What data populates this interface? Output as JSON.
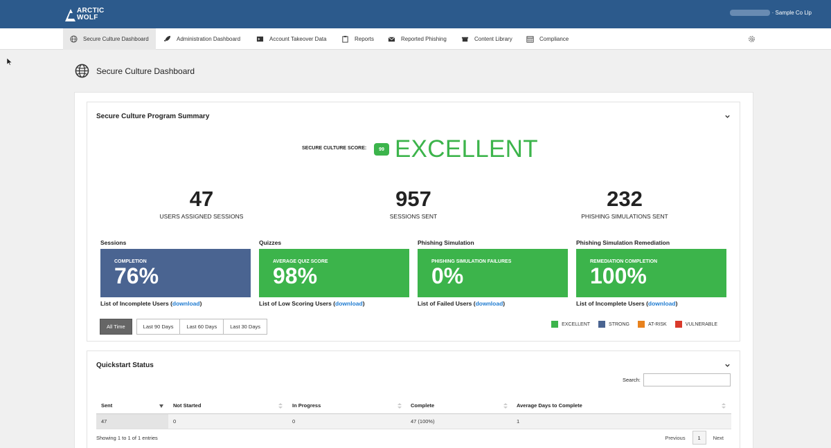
{
  "brand": {
    "line1": "ARCTIC",
    "line2": "WOLF"
  },
  "account": {
    "company": "· Sample Co Llp"
  },
  "nav": {
    "items": [
      {
        "label": "Secure Culture Dashboard",
        "icon": "globe-icon"
      },
      {
        "label": "Administration Dashboard",
        "icon": "rocket-icon"
      },
      {
        "label": "Account Takeover Data",
        "icon": "terminal-icon"
      },
      {
        "label": "Reports",
        "icon": "clipboard-icon"
      },
      {
        "label": "Reported Phishing",
        "icon": "envelope-icon"
      },
      {
        "label": "Content Library",
        "icon": "box-icon"
      },
      {
        "label": "Compliance",
        "icon": "calendar-icon"
      }
    ],
    "settings_icon": "gear-icon"
  },
  "page": {
    "title": "Secure Culture Dashboard",
    "icon": "globe-icon"
  },
  "summary": {
    "title": "Secure Culture Program Summary",
    "score_label": "SECURE CULTURE SCORE:",
    "score_value": "99",
    "score_rating": "EXCELLENT",
    "stats": [
      {
        "value": "47",
        "label": "USERS ASSIGNED SESSIONS"
      },
      {
        "value": "957",
        "label": "SESSIONS SENT"
      },
      {
        "value": "232",
        "label": "PHISHING SIMULATIONS SENT"
      }
    ],
    "metrics": [
      {
        "category": "Sessions",
        "caption": "COMPLETION",
        "value": "76%",
        "color": "#4a6491",
        "link_prefix": "List of Incomplete Users (",
        "link_text": "download",
        "link_suffix": ")"
      },
      {
        "category": "Quizzes",
        "caption": "AVERAGE QUIZ SCORE",
        "value": "98%",
        "color": "#3cb44b",
        "link_prefix": "List of Low Scoring Users (",
        "link_text": "download",
        "link_suffix": ")"
      },
      {
        "category": "Phishing Simulation",
        "caption": "PHISHING SIMULATION FAILURES",
        "value": "0%",
        "color": "#3cb44b",
        "link_prefix": "List of Failed Users (",
        "link_text": "download",
        "link_suffix": ")"
      },
      {
        "category": "Phishing Simulation Remediation",
        "caption": "REMEDIATION COMPLETION",
        "value": "100%",
        "color": "#3cb44b",
        "link_prefix": "List of Incomplete Users (",
        "link_text": "download",
        "link_suffix": ")"
      }
    ],
    "time_filters": [
      "All Time",
      "Last 90 Days",
      "Last 60 Days",
      "Last 30 Days"
    ],
    "active_filter": "All Time",
    "legend": [
      {
        "label": "EXCELLENT",
        "color": "#3cb44b"
      },
      {
        "label": "STRONG",
        "color": "#4a6491"
      },
      {
        "label": "AT-RISK",
        "color": "#e8821e"
      },
      {
        "label": "VULNERABLE",
        "color": "#d93a2b"
      }
    ]
  },
  "quickstart": {
    "title": "Quickstart Status",
    "search_label": "Search:",
    "search_value": "",
    "columns": [
      "Sent",
      "Not Started",
      "In Progress",
      "Complete",
      "Average Days to Complete"
    ],
    "rows": [
      [
        "47",
        "0",
        "0",
        "47  (100%)",
        "1"
      ]
    ],
    "showing": "Showing 1 to 1 of 1 entries",
    "pager": {
      "prev": "Previous",
      "current": "1",
      "next": "Next"
    }
  }
}
